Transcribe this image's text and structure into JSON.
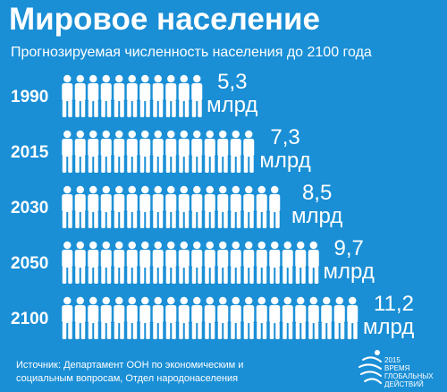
{
  "chart_data": {
    "type": "bar",
    "title": "Мировое население",
    "subtitle": "Прогнозируемая численность населения до 2100 года",
    "categories": [
      "1990",
      "2015",
      "2030",
      "2050",
      "2100"
    ],
    "values": [
      5.3,
      7.3,
      8.5,
      9.7,
      11.2
    ],
    "value_labels": [
      "5,3",
      "7,3",
      "8,5",
      "9,7",
      "11,2"
    ],
    "unit": "млрд",
    "ylim": [
      0,
      11.2
    ]
  },
  "source": "Источник: Департамент ООН по экономическим и социальным вопросам, Отдел народонаселения",
  "logo": {
    "year": "2015",
    "text": "ВРЕМЯ ГЛОБАЛЬНЫХ ДЕЙСТВИЙ"
  },
  "colors": {
    "background": "#1a8fd6",
    "figures": "#ffffff"
  }
}
